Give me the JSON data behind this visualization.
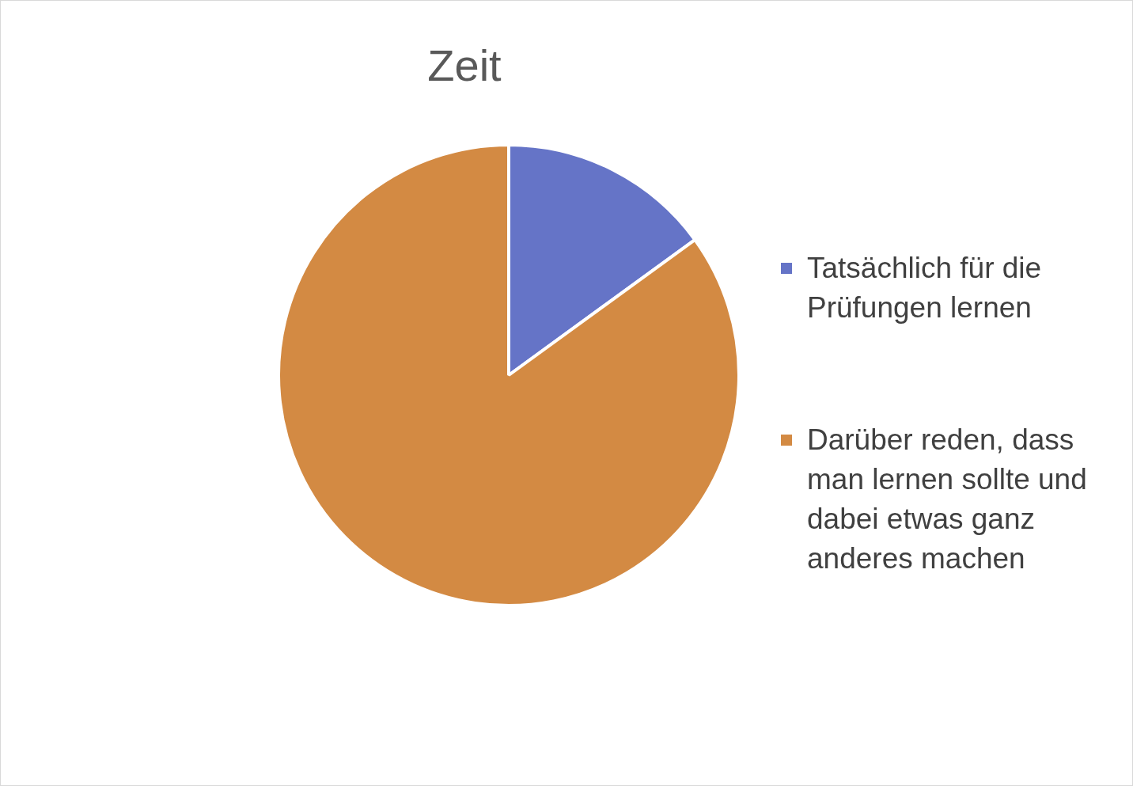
{
  "chart_data": {
    "type": "pie",
    "title": "Zeit",
    "categories": [
      "Tatsächlich für die Prüfungen lernen",
      "Darüber reden, dass man lernen sollte und dabei etwas ganz anderes machen"
    ],
    "values": [
      15,
      85
    ],
    "colors": [
      "#6574c7",
      "#d38a43"
    ],
    "legend": "right"
  }
}
